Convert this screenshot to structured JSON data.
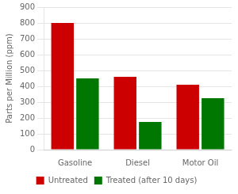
{
  "chart_data": {
    "type": "bar",
    "categories": [
      "Gasoline",
      "Diesel",
      "Motor Oil"
    ],
    "series": [
      {
        "name": "Untreated",
        "color": "#cc0000",
        "values": [
          800,
          460,
          410
        ]
      },
      {
        "name": "Treated (after 10 days)",
        "color": "#007700",
        "values": [
          450,
          175,
          325
        ]
      }
    ],
    "ylabel": "Parts per Million (ppm)",
    "ylim": [
      0,
      900
    ],
    "yticks": [
      0,
      100,
      200,
      300,
      400,
      500,
      600,
      700,
      800,
      900
    ],
    "grid": true,
    "legend": "bottom"
  }
}
